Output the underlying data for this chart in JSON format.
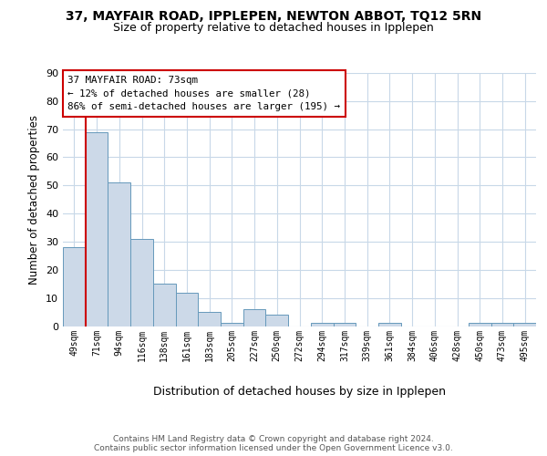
{
  "title": "37, MAYFAIR ROAD, IPPLEPEN, NEWTON ABBOT, TQ12 5RN",
  "subtitle": "Size of property relative to detached houses in Ipplepen",
  "xlabel": "Distribution of detached houses by size in Ipplepen",
  "ylabel": "Number of detached properties",
  "bin_labels": [
    "49sqm",
    "71sqm",
    "94sqm",
    "116sqm",
    "138sqm",
    "161sqm",
    "183sqm",
    "205sqm",
    "227sqm",
    "250sqm",
    "272sqm",
    "294sqm",
    "317sqm",
    "339sqm",
    "361sqm",
    "384sqm",
    "406sqm",
    "428sqm",
    "450sqm",
    "473sqm",
    "495sqm"
  ],
  "bar_values": [
    28,
    69,
    51,
    31,
    15,
    12,
    5,
    1,
    6,
    4,
    0,
    1,
    1,
    0,
    1,
    0,
    0,
    0,
    1,
    1,
    1
  ],
  "bar_color": "#ccd9e8",
  "bar_edge_color": "#6699bb",
  "property_line_color": "#cc0000",
  "annotation_line1": "37 MAYFAIR ROAD: 73sqm",
  "annotation_line2": "← 12% of detached houses are smaller (28)",
  "annotation_line3": "86% of semi-detached houses are larger (195) →",
  "annotation_box_color": "#ffffff",
  "annotation_box_edge": "#cc0000",
  "footer_text": "Contains HM Land Registry data © Crown copyright and database right 2024.\nContains public sector information licensed under the Open Government Licence v3.0.",
  "ylim": [
    0,
    90
  ],
  "yticks": [
    0,
    10,
    20,
    30,
    40,
    50,
    60,
    70,
    80,
    90
  ],
  "background_color": "#ffffff",
  "grid_color": "#c8d8e8",
  "title_fontsize": 10,
  "subtitle_fontsize": 9,
  "ylabel_fontsize": 8.5,
  "xlabel_fontsize": 9,
  "tick_fontsize": 8,
  "xtick_fontsize": 7
}
